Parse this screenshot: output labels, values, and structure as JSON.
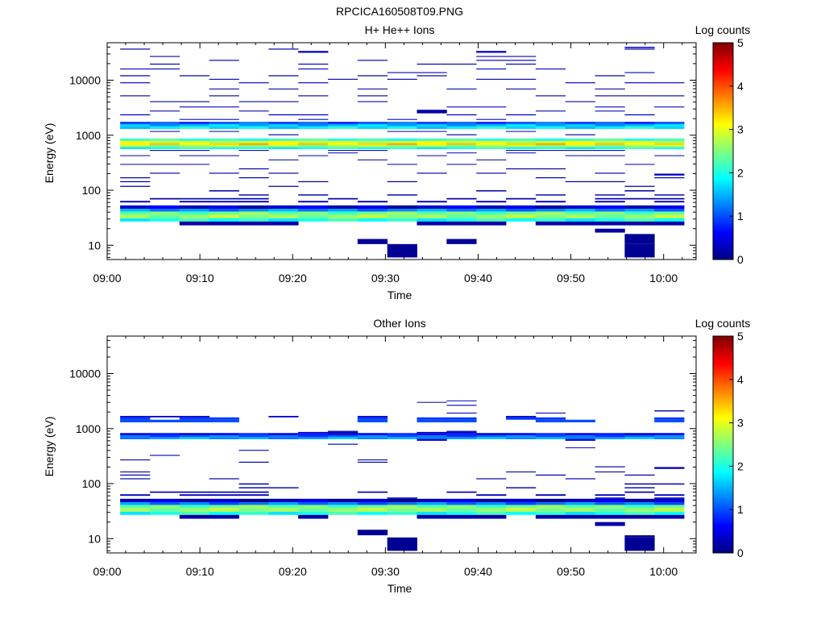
{
  "page_title": "RPCICA160508T09.PNG",
  "chart_data": [
    {
      "type": "heatmap",
      "title": "H+ He++ Ions",
      "xlabel": "Time",
      "ylabel": "Energy (eV)",
      "x_ticks": [
        "09:00",
        "09:10",
        "09:20",
        "09:30",
        "09:40",
        "09:50",
        "10:00"
      ],
      "x_tick_minutes": [
        0,
        10,
        20,
        30,
        40,
        50,
        60
      ],
      "xlim_minutes": [
        0,
        63.5
      ],
      "y_scale": "log",
      "ylim": [
        5.5,
        48000
      ],
      "y_ticks": [
        "10",
        "100",
        "1000",
        "10000"
      ],
      "y_tick_values": [
        10,
        100,
        1000,
        10000
      ],
      "colorbar": {
        "label": "Log counts",
        "range": [
          0,
          5
        ],
        "ticks": [
          "0",
          "1",
          "2",
          "3",
          "4",
          "5"
        ]
      },
      "time_columns": [
        [
          1.4,
          4.6
        ],
        [
          4.6,
          7.8
        ],
        [
          7.8,
          11.0
        ],
        [
          11.0,
          14.2
        ],
        [
          14.2,
          17.4
        ],
        [
          17.4,
          20.6
        ],
        [
          20.6,
          23.8
        ],
        [
          23.8,
          27.0
        ],
        [
          27.0,
          30.2
        ],
        [
          30.2,
          33.4
        ],
        [
          33.4,
          36.6
        ],
        [
          36.6,
          39.8
        ],
        [
          39.8,
          43.0
        ],
        [
          43.0,
          46.2
        ],
        [
          46.2,
          49.4
        ],
        [
          49.4,
          52.6
        ],
        [
          52.6,
          55.8
        ],
        [
          55.8,
          59.0
        ],
        [
          59.0,
          62.2
        ]
      ],
      "bands": [
        {
          "emin": 27,
          "emax": 31,
          "level": 2.0
        },
        {
          "emin": 31,
          "emax": 36,
          "level": 2.6
        },
        {
          "emin": 36,
          "emax": 41,
          "level": 2.4
        },
        {
          "emin": 41,
          "emax": 46,
          "level": 1.3
        },
        {
          "emin": 46,
          "emax": 53,
          "level": 0.4
        },
        {
          "emin": 560,
          "emax": 610,
          "level": 2.0
        },
        {
          "emin": 610,
          "emax": 660,
          "level": 2.6
        },
        {
          "emin": 660,
          "emax": 720,
          "level": 3.3
        },
        {
          "emin": 720,
          "emax": 790,
          "level": 2.9
        },
        {
          "emin": 790,
          "emax": 870,
          "level": 2.1
        },
        {
          "emin": 1300,
          "emax": 1450,
          "level": 1.8
        },
        {
          "emin": 1450,
          "emax": 1600,
          "level": 1.5
        },
        {
          "emin": 1600,
          "emax": 1750,
          "level": 1.0
        }
      ],
      "sparse_counts": [
        {
          "emin": 23,
          "emax": 27,
          "level": 0.2,
          "cols": [
            2,
            3,
            4,
            5,
            10,
            11,
            12,
            14,
            15,
            16,
            17,
            18
          ]
        },
        {
          "emin": 17,
          "emax": 20,
          "level": 0.2,
          "cols": [
            16
          ]
        },
        {
          "emin": 10.5,
          "emax": 13,
          "level": 0.1,
          "cols": [
            8,
            11
          ]
        },
        {
          "emin": 6,
          "emax": 10.5,
          "level": 0.1,
          "cols": [
            9,
            17
          ]
        },
        {
          "emin": 10.5,
          "emax": 16,
          "level": 0.1,
          "cols": [
            17
          ]
        },
        {
          "emin": 60,
          "emax": 64,
          "level": 0.3,
          "cols": [
            0,
            2,
            3,
            4,
            6,
            8,
            10,
            12,
            14,
            16,
            18
          ]
        },
        {
          "emin": 68,
          "emax": 72,
          "level": 0.2,
          "cols": [
            1,
            2,
            3,
            4,
            7,
            11,
            13,
            16,
            17,
            18
          ]
        },
        {
          "emin": 80,
          "emax": 84,
          "level": 0.2,
          "cols": [
            4,
            6,
            9,
            14,
            16,
            18
          ]
        },
        {
          "emin": 95,
          "emax": 100,
          "level": 0.2,
          "cols": [
            3,
            12,
            17
          ]
        },
        {
          "emin": 115,
          "emax": 120,
          "level": 0.2,
          "cols": [
            0,
            5,
            17
          ]
        },
        {
          "emin": 140,
          "emax": 146,
          "level": 0.2,
          "cols": [
            0,
            6,
            9,
            15,
            16
          ]
        },
        {
          "emin": 165,
          "emax": 172,
          "level": 0.2,
          "cols": [
            0,
            4,
            14,
            18
          ]
        },
        {
          "emin": 185,
          "emax": 200,
          "level": 0.3,
          "cols": [
            18
          ]
        },
        {
          "emin": 200,
          "emax": 208,
          "level": 0.2,
          "cols": [
            1,
            3,
            5,
            10,
            12,
            16
          ]
        },
        {
          "emin": 240,
          "emax": 250,
          "level": 0.2,
          "cols": [
            4,
            13,
            14
          ]
        },
        {
          "emin": 290,
          "emax": 300,
          "level": 0.2,
          "cols": [
            0,
            1,
            2,
            9,
            11,
            17
          ]
        },
        {
          "emin": 350,
          "emax": 362,
          "level": 0.2,
          "cols": [
            5,
            8,
            12
          ]
        },
        {
          "emin": 420,
          "emax": 432,
          "level": 0.2,
          "cols": [
            0,
            2,
            3,
            6,
            10,
            15,
            16,
            18
          ]
        },
        {
          "emin": 470,
          "emax": 485,
          "level": 0.3,
          "cols": [
            7,
            11,
            13
          ]
        },
        {
          "emin": 520,
          "emax": 540,
          "level": 0.4,
          "cols": [
            1,
            2,
            4,
            7,
            8,
            13,
            14,
            15,
            16
          ]
        },
        {
          "emin": 1000,
          "emax": 1040,
          "level": 0.2,
          "cols": [
            5,
            11,
            15
          ]
        },
        {
          "emin": 1150,
          "emax": 1190,
          "level": 0.2,
          "cols": [
            1,
            3,
            9,
            10,
            13
          ]
        },
        {
          "emin": 1900,
          "emax": 1970,
          "level": 0.3,
          "cols": [
            2,
            3,
            6,
            9,
            12
          ]
        },
        {
          "emin": 2300,
          "emax": 2400,
          "level": 0.3,
          "cols": [
            0,
            5,
            6,
            11,
            13,
            17
          ]
        },
        {
          "emin": 2500,
          "emax": 2900,
          "level": 0.2,
          "cols": [
            10
          ]
        },
        {
          "emin": 2700,
          "emax": 2800,
          "level": 0.2,
          "cols": [
            1,
            4,
            14,
            16
          ]
        },
        {
          "emin": 3200,
          "emax": 3320,
          "level": 0.3,
          "cols": [
            2,
            3,
            11,
            12,
            16,
            18
          ]
        },
        {
          "emin": 4000,
          "emax": 4150,
          "level": 0.2,
          "cols": [
            1,
            2,
            4,
            5,
            8,
            15
          ]
        },
        {
          "emin": 5100,
          "emax": 5300,
          "level": 0.2,
          "cols": [
            0,
            3,
            6,
            8,
            14,
            16,
            17,
            18
          ]
        },
        {
          "emin": 6800,
          "emax": 7050,
          "level": 0.2,
          "cols": [
            3,
            5,
            8,
            11,
            13,
            16
          ]
        },
        {
          "emin": 8800,
          "emax": 9150,
          "level": 0.3,
          "cols": [
            0,
            4,
            6,
            15,
            17,
            18
          ]
        },
        {
          "emin": 10200,
          "emax": 10600,
          "level": 0.2,
          "cols": [
            3,
            7,
            9,
            12,
            13
          ]
        },
        {
          "emin": 11800,
          "emax": 12300,
          "level": 0.2,
          "cols": [
            0,
            2,
            5,
            8,
            10,
            16
          ]
        },
        {
          "emin": 13500,
          "emax": 14000,
          "level": 0.2,
          "cols": [
            9,
            10,
            17
          ]
        },
        {
          "emin": 15700,
          "emax": 16300,
          "level": 0.3,
          "cols": [
            0,
            1,
            6,
            12,
            14
          ]
        },
        {
          "emin": 19200,
          "emax": 20000,
          "level": 0.3,
          "cols": [
            1,
            6,
            10,
            11,
            13
          ]
        },
        {
          "emin": 22500,
          "emax": 23400,
          "level": 0.2,
          "cols": [
            3,
            8,
            12,
            13
          ]
        },
        {
          "emin": 26500,
          "emax": 27500,
          "level": 0.2,
          "cols": [
            1,
            12,
            13
          ]
        },
        {
          "emin": 31500,
          "emax": 34000,
          "level": 0.3,
          "cols": [
            6,
            12
          ]
        },
        {
          "emin": 36000,
          "emax": 37500,
          "level": 0.2,
          "cols": [
            0,
            5,
            17
          ]
        },
        {
          "emin": 38500,
          "emax": 40500,
          "level": 0.3,
          "cols": [
            17
          ]
        }
      ]
    },
    {
      "type": "heatmap",
      "title": "Other Ions",
      "xlabel": "Time",
      "ylabel": "Energy (eV)",
      "x_ticks": [
        "09:00",
        "09:10",
        "09:20",
        "09:30",
        "09:40",
        "09:50",
        "10:00"
      ],
      "x_tick_minutes": [
        0,
        10,
        20,
        30,
        40,
        50,
        60
      ],
      "xlim_minutes": [
        0,
        63.5
      ],
      "y_scale": "log",
      "ylim": [
        5.5,
        48000
      ],
      "y_ticks": [
        "10",
        "100",
        "1000",
        "10000"
      ],
      "y_tick_values": [
        10,
        100,
        1000,
        10000
      ],
      "colorbar": {
        "label": "Log counts",
        "range": [
          0,
          5
        ],
        "ticks": [
          "0",
          "1",
          "2",
          "3",
          "4",
          "5"
        ]
      },
      "time_columns": [
        [
          1.4,
          4.6
        ],
        [
          4.6,
          7.8
        ],
        [
          7.8,
          11.0
        ],
        [
          11.0,
          14.2
        ],
        [
          14.2,
          17.4
        ],
        [
          17.4,
          20.6
        ],
        [
          20.6,
          23.8
        ],
        [
          23.8,
          27.0
        ],
        [
          27.0,
          30.2
        ],
        [
          30.2,
          33.4
        ],
        [
          33.4,
          36.6
        ],
        [
          36.6,
          39.8
        ],
        [
          39.8,
          43.0
        ],
        [
          43.0,
          46.2
        ],
        [
          46.2,
          49.4
        ],
        [
          49.4,
          52.6
        ],
        [
          52.6,
          55.8
        ],
        [
          55.8,
          59.0
        ],
        [
          59.0,
          62.2
        ]
      ],
      "bands": [
        {
          "emin": 27,
          "emax": 31,
          "level": 2.0
        },
        {
          "emin": 31,
          "emax": 36,
          "level": 2.6
        },
        {
          "emin": 36,
          "emax": 41,
          "level": 2.4
        },
        {
          "emin": 41,
          "emax": 46,
          "level": 1.2
        },
        {
          "emin": 46,
          "emax": 53,
          "level": 0.3
        },
        {
          "emin": 640,
          "emax": 700,
          "level": 1.4
        },
        {
          "emin": 700,
          "emax": 760,
          "level": 1.1
        },
        {
          "emin": 760,
          "emax": 830,
          "level": 0.6
        }
      ],
      "sparse_counts": [
        {
          "emin": 23,
          "emax": 27,
          "level": 0.2,
          "cols": [
            2,
            3,
            6,
            10,
            11,
            12,
            14,
            15,
            16,
            17,
            18
          ]
        },
        {
          "emin": 17,
          "emax": 20,
          "level": 0.2,
          "cols": [
            16
          ]
        },
        {
          "emin": 11.5,
          "emax": 14.5,
          "level": 0.1,
          "cols": [
            8
          ]
        },
        {
          "emin": 6,
          "emax": 10.5,
          "level": 0.1,
          "cols": [
            9,
            17
          ]
        },
        {
          "emin": 10.5,
          "emax": 11.5,
          "level": 0.1,
          "cols": [
            17
          ]
        },
        {
          "emin": 53,
          "emax": 56,
          "level": 0.3,
          "cols": [
            9,
            16,
            18
          ]
        },
        {
          "emin": 60,
          "emax": 64,
          "level": 0.3,
          "cols": [
            0,
            2,
            3,
            4,
            12,
            14,
            16,
            18
          ]
        },
        {
          "emin": 68,
          "emax": 72,
          "level": 0.2,
          "cols": [
            1,
            2,
            3,
            4,
            8,
            11,
            17
          ]
        },
        {
          "emin": 82,
          "emax": 86,
          "level": 0.2,
          "cols": [
            4,
            5,
            13,
            17
          ]
        },
        {
          "emin": 96,
          "emax": 101,
          "level": 0.2,
          "cols": [
            4,
            17,
            18
          ]
        },
        {
          "emin": 120,
          "emax": 125,
          "level": 0.2,
          "cols": [
            0,
            3,
            12,
            15
          ]
        },
        {
          "emin": 140,
          "emax": 146,
          "level": 0.2,
          "cols": [
            0,
            14,
            17
          ]
        },
        {
          "emin": 160,
          "emax": 166,
          "level": 0.2,
          "cols": [
            0,
            13,
            16
          ]
        },
        {
          "emin": 185,
          "emax": 200,
          "level": 0.3,
          "cols": [
            18
          ]
        },
        {
          "emin": 198,
          "emax": 206,
          "level": 0.2,
          "cols": [
            16
          ]
        },
        {
          "emin": 240,
          "emax": 250,
          "level": 0.2,
          "cols": [
            4,
            8
          ]
        },
        {
          "emin": 265,
          "emax": 275,
          "level": 0.2,
          "cols": [
            0,
            8
          ]
        },
        {
          "emin": 320,
          "emax": 332,
          "level": 0.2,
          "cols": [
            1
          ]
        },
        {
          "emin": 395,
          "emax": 410,
          "level": 0.2,
          "cols": [
            4
          ]
        },
        {
          "emin": 440,
          "emax": 455,
          "level": 0.3,
          "cols": [
            15
          ]
        },
        {
          "emin": 510,
          "emax": 530,
          "level": 0.3,
          "cols": [
            7
          ]
        },
        {
          "emin": 600,
          "emax": 640,
          "level": 0.3,
          "cols": [
            10,
            15
          ]
        },
        {
          "emin": 830,
          "emax": 870,
          "level": 0.3,
          "cols": [
            6,
            7,
            10,
            11
          ]
        },
        {
          "emin": 870,
          "emax": 910,
          "level": 0.2,
          "cols": [
            7,
            11
          ]
        },
        {
          "emin": 1300,
          "emax": 1450,
          "level": 1.0,
          "cols": [
            0,
            1,
            2,
            3,
            8,
            10,
            11,
            14,
            15,
            18
          ]
        },
        {
          "emin": 1450,
          "emax": 1600,
          "level": 0.9,
          "cols": [
            0,
            2,
            3,
            8,
            10,
            11,
            13,
            14,
            18
          ]
        },
        {
          "emin": 1600,
          "emax": 1700,
          "level": 0.4,
          "cols": [
            0,
            1,
            2,
            5,
            8,
            13
          ]
        },
        {
          "emin": 1880,
          "emax": 1950,
          "level": 0.3,
          "cols": [
            11,
            14
          ]
        },
        {
          "emin": 2050,
          "emax": 2150,
          "level": 0.2,
          "cols": [
            18
          ]
        },
        {
          "emin": 2600,
          "emax": 2700,
          "level": 0.2,
          "cols": [
            11
          ]
        },
        {
          "emin": 2950,
          "emax": 3050,
          "level": 0.2,
          "cols": [
            10
          ]
        },
        {
          "emin": 3150,
          "emax": 3250,
          "level": 0.3,
          "cols": [
            11
          ]
        }
      ]
    }
  ]
}
